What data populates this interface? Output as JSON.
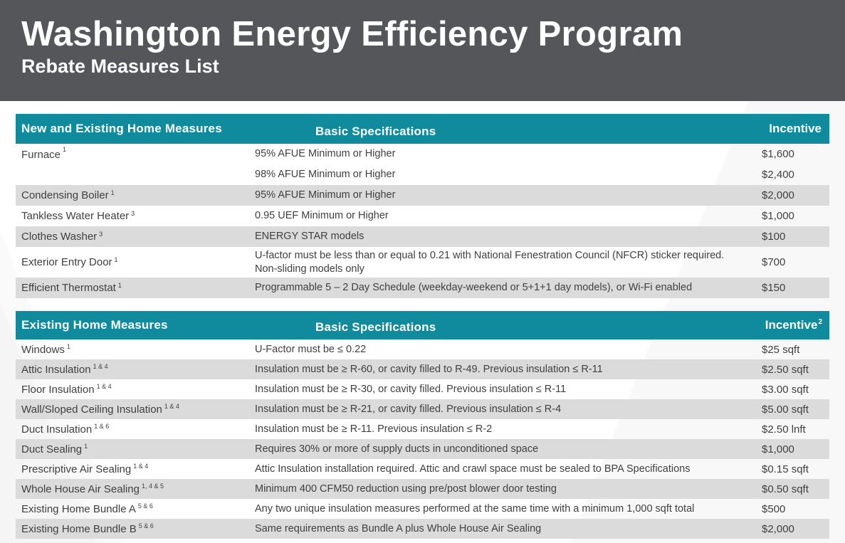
{
  "banner": {
    "title": "Washington Energy Efficiency Program",
    "subtitle": "Rebate Measures List"
  },
  "colors": {
    "banner_bg": "#54565A",
    "table_header_bg": "#0F8B9D",
    "row_alt_bg": "#DBDBDB",
    "text": "#3F4042"
  },
  "tables": [
    {
      "headers": {
        "measure": "New and Existing Home Measures",
        "spec": "Basic Specifications",
        "incentive": "Incentive",
        "incentive_sup": ""
      },
      "rows": [
        {
          "measure": "Furnace",
          "sup": "1",
          "lines": [
            {
              "spec": "95% AFUE Minimum or Higher",
              "incentive": "$1,600"
            },
            {
              "spec": "98% AFUE Minimum or Higher",
              "incentive": "$2,400"
            }
          ]
        },
        {
          "measure": "Condensing Boiler",
          "sup": "1",
          "lines": [
            {
              "spec": "95% AFUE Minimum or Higher",
              "incentive": "$2,000"
            }
          ]
        },
        {
          "measure": "Tankless Water Heater",
          "sup": "3",
          "lines": [
            {
              "spec": "0.95 UEF Minimum or Higher",
              "incentive": "$1,000"
            }
          ]
        },
        {
          "measure": "Clothes Washer",
          "sup": "3",
          "lines": [
            {
              "spec": "ENERGY STAR models",
              "incentive": "$100"
            }
          ]
        },
        {
          "measure": "Exterior Entry Door",
          "sup": "1",
          "lines": [
            {
              "spec": "U-factor must be less than or equal to 0.21 with National Fenestration Council (NFCR) sticker required. Non-sliding models only",
              "incentive": "$700"
            }
          ]
        },
        {
          "measure": "Efficient Thermostat",
          "sup": "1",
          "lines": [
            {
              "spec": "Programmable 5 – 2 Day Schedule (weekday-weekend or 5+1+1 day models), or Wi-Fi enabled",
              "incentive": "$150"
            }
          ]
        }
      ]
    },
    {
      "headers": {
        "measure": "Existing Home Measures",
        "spec": "Basic Specifications",
        "incentive": "Incentive",
        "incentive_sup": "2"
      },
      "rows": [
        {
          "measure": "Windows",
          "sup": "1",
          "lines": [
            {
              "spec": "U-Factor must be ≤ 0.22",
              "incentive": "$25 sqft"
            }
          ]
        },
        {
          "measure": "Attic Insulation",
          "sup": "1 & 4",
          "lines": [
            {
              "spec": "Insulation must be ≥ R-60, or cavity filled to R-49. Previous insulation ≤ R-11",
              "incentive": "$2.50 sqft"
            }
          ]
        },
        {
          "measure": "Floor Insulation",
          "sup": "1 & 4",
          "lines": [
            {
              "spec": "Insulation must be ≥ R-30, or cavity filled. Previous insulation ≤ R-11",
              "incentive": "$3.00 sqft"
            }
          ]
        },
        {
          "measure": "Wall/Sloped Ceiling Insulation",
          "sup": "1 & 4",
          "lines": [
            {
              "spec": "Insulation must be ≥ R-21, or cavity filled. Previous insulation ≤ R-4",
              "incentive": "$5.00 sqft"
            }
          ]
        },
        {
          "measure": "Duct Insulation",
          "sup": "1 & 6",
          "lines": [
            {
              "spec": "Insulation must be ≥ R-11. Previous insulation ≤ R-2",
              "incentive": "$2.50 lnft"
            }
          ]
        },
        {
          "measure": "Duct Sealing",
          "sup": "1",
          "lines": [
            {
              "spec": "Requires 30% or more of supply ducts in unconditioned space",
              "incentive": "$1,000"
            }
          ]
        },
        {
          "measure": "Prescriptive Air Sealing",
          "sup": "1 & 4",
          "lines": [
            {
              "spec": "Attic Insulation installation required. Attic and crawl space must be sealed to BPA Specifications",
              "incentive": "$0.15 sqft"
            }
          ]
        },
        {
          "measure": "Whole House Air Sealing",
          "sup": "1, 4 & 5",
          "lines": [
            {
              "spec": "Minimum 400 CFM50 reduction using pre/post blower door testing",
              "incentive": "$0.50 sqft"
            }
          ]
        },
        {
          "measure": "Existing Home Bundle A",
          "sup": "5 & 6",
          "lines": [
            {
              "spec": "Any two unique insulation measures performed at the same time with a minimum 1,000 sqft total",
              "incentive": "$500"
            }
          ]
        },
        {
          "measure": "Existing Home Bundle B",
          "sup": "5 & 6",
          "lines": [
            {
              "spec": "Same requirements as Bundle A plus Whole House Air Sealing",
              "incentive": "$2,000"
            }
          ]
        }
      ]
    }
  ]
}
